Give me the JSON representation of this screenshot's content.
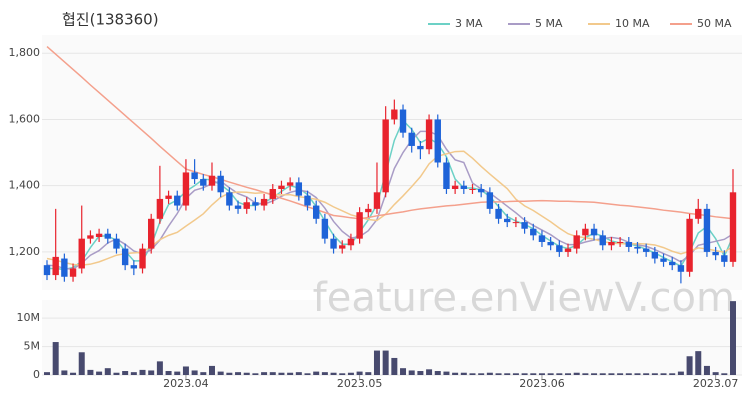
{
  "chart_data": {
    "type": "candlestick",
    "title": "협진(138360)",
    "watermark": "feature.enViewV.com",
    "categories": [
      null,
      null,
      null,
      null,
      null,
      null,
      null,
      null,
      null,
      null,
      null,
      null,
      null,
      null,
      null,
      null,
      "2023.04",
      null,
      null,
      null,
      null,
      null,
      null,
      null,
      null,
      null,
      null,
      null,
      null,
      null,
      null,
      null,
      null,
      null,
      null,
      null,
      "2023.05",
      null,
      null,
      null,
      null,
      null,
      null,
      null,
      null,
      null,
      null,
      null,
      null,
      null,
      null,
      null,
      null,
      null,
      null,
      null,
      null,
      "2023.06",
      null,
      null,
      null,
      null,
      null,
      null,
      null,
      null,
      null,
      null,
      null,
      null,
      null,
      null,
      null,
      null,
      null,
      null,
      null,
      "2023.07",
      null,
      null
    ],
    "open": [
      1160,
      1130,
      1180,
      1125,
      1150,
      1240,
      1245,
      1255,
      1240,
      1210,
      1160,
      1150,
      1210,
      1300,
      1360,
      1370,
      1340,
      1440,
      1420,
      1400,
      1430,
      1380,
      1340,
      1330,
      1350,
      1340,
      1360,
      1390,
      1400,
      1410,
      1370,
      1340,
      1300,
      1240,
      1210,
      1220,
      1240,
      1320,
      1330,
      1380,
      1600,
      1630,
      1560,
      1520,
      1510,
      1600,
      1470,
      1390,
      1400,
      1390,
      1390,
      1380,
      1330,
      1300,
      1290,
      1290,
      1270,
      1250,
      1230,
      1220,
      1200,
      1210,
      1250,
      1270,
      1250,
      1220,
      1230,
      1230,
      1215,
      1210,
      1200,
      1180,
      1170,
      1160,
      1140,
      1300,
      1330,
      1200,
      1190,
      1170
    ],
    "high": [
      1175,
      1330,
      1195,
      1165,
      1340,
      1265,
      1270,
      1270,
      1255,
      1225,
      1175,
      1225,
      1315,
      1460,
      1385,
      1385,
      1480,
      1480,
      1435,
      1470,
      1445,
      1395,
      1355,
      1365,
      1365,
      1375,
      1405,
      1415,
      1425,
      1425,
      1385,
      1355,
      1315,
      1255,
      1235,
      1255,
      1335,
      1345,
      1470,
      1640,
      1660,
      1645,
      1575,
      1535,
      1615,
      1615,
      1485,
      1415,
      1415,
      1405,
      1405,
      1395,
      1345,
      1315,
      1305,
      1305,
      1285,
      1265,
      1245,
      1235,
      1225,
      1265,
      1285,
      1285,
      1265,
      1245,
      1245,
      1245,
      1230,
      1225,
      1215,
      1195,
      1185,
      1175,
      1315,
      1360,
      1345,
      1215,
      1205,
      1450
    ],
    "low": [
      1115,
      1115,
      1110,
      1110,
      1135,
      1225,
      1230,
      1225,
      1195,
      1145,
      1130,
      1135,
      1195,
      1285,
      1345,
      1325,
      1325,
      1405,
      1385,
      1385,
      1365,
      1325,
      1315,
      1315,
      1325,
      1325,
      1345,
      1375,
      1385,
      1355,
      1325,
      1285,
      1225,
      1195,
      1195,
      1205,
      1225,
      1305,
      1315,
      1365,
      1585,
      1545,
      1500,
      1480,
      1495,
      1455,
      1375,
      1375,
      1375,
      1375,
      1365,
      1315,
      1285,
      1275,
      1275,
      1255,
      1235,
      1215,
      1205,
      1185,
      1185,
      1195,
      1235,
      1235,
      1205,
      1205,
      1215,
      1200,
      1195,
      1185,
      1165,
      1155,
      1145,
      1105,
      1125,
      1285,
      1185,
      1175,
      1155,
      1155
    ],
    "close": [
      1130,
      1185,
      1125,
      1150,
      1240,
      1250,
      1255,
      1240,
      1210,
      1160,
      1150,
      1210,
      1300,
      1360,
      1370,
      1340,
      1440,
      1420,
      1400,
      1430,
      1380,
      1340,
      1330,
      1350,
      1340,
      1360,
      1390,
      1400,
      1410,
      1370,
      1340,
      1300,
      1240,
      1210,
      1220,
      1240,
      1320,
      1330,
      1380,
      1600,
      1630,
      1560,
      1520,
      1510,
      1600,
      1470,
      1390,
      1400,
      1390,
      1390,
      1380,
      1330,
      1300,
      1290,
      1290,
      1270,
      1250,
      1230,
      1220,
      1200,
      1210,
      1250,
      1270,
      1250,
      1220,
      1230,
      1230,
      1215,
      1210,
      1200,
      1180,
      1170,
      1160,
      1140,
      1300,
      1330,
      1200,
      1190,
      1170,
      1380
    ],
    "volume": [
      500000,
      5800000,
      800000,
      400000,
      4000000,
      900000,
      600000,
      1200000,
      400000,
      700000,
      500000,
      900000,
      800000,
      2400000,
      700000,
      600000,
      1500000,
      800000,
      500000,
      1600000,
      600000,
      400000,
      500000,
      400000,
      300000,
      500000,
      500000,
      400000,
      400000,
      500000,
      300000,
      600000,
      500000,
      400000,
      300000,
      400000,
      600000,
      500000,
      4300000,
      4300000,
      3000000,
      1200000,
      800000,
      700000,
      1000000,
      700000,
      600000,
      400000,
      400000,
      300000,
      300000,
      400000,
      300000,
      300000,
      300000,
      300000,
      300000,
      300000,
      300000,
      300000,
      300000,
      400000,
      300000,
      300000,
      300000,
      300000,
      300000,
      300000,
      300000,
      300000,
      300000,
      300000,
      300000,
      600000,
      3300000,
      4200000,
      1600000,
      500000,
      300000,
      13000000
    ],
    "up_color": "#e8232d",
    "down_color": "#1e63d8",
    "volume_color": "#484a6e",
    "series": [
      {
        "name": "3 MA",
        "color": "#6cd1c6",
        "values": [
          1150,
          1150,
          1147,
          1153,
          1172,
          1213,
          1248,
          1248,
          1235,
          1203,
          1173,
          1173,
          1220,
          1290,
          1343,
          1357,
          1383,
          1400,
          1420,
          1417,
          1403,
          1383,
          1350,
          1340,
          1340,
          1350,
          1363,
          1383,
          1400,
          1393,
          1373,
          1337,
          1293,
          1250,
          1223,
          1223,
          1260,
          1297,
          1343,
          1437,
          1537,
          1597,
          1570,
          1530,
          1543,
          1527,
          1487,
          1420,
          1393,
          1393,
          1387,
          1367,
          1337,
          1307,
          1293,
          1283,
          1270,
          1250,
          1233,
          1217,
          1210,
          1220,
          1243,
          1257,
          1247,
          1233,
          1227,
          1225,
          1218,
          1208,
          1197,
          1183,
          1170,
          1157,
          1200,
          1257,
          1277,
          1240,
          1187,
          1247
        ]
      },
      {
        "name": "5 MA",
        "color": "#a99cc6",
        "values": [
          1160,
          1158,
          1150,
          1148,
          1166,
          1190,
          1204,
          1227,
          1239,
          1223,
          1203,
          1194,
          1206,
          1236,
          1278,
          1316,
          1362,
          1386,
          1394,
          1406,
          1414,
          1394,
          1376,
          1366,
          1348,
          1344,
          1354,
          1368,
          1380,
          1386,
          1382,
          1364,
          1332,
          1292,
          1262,
          1242,
          1246,
          1264,
          1298,
          1374,
          1452,
          1500,
          1538,
          1564,
          1564,
          1552,
          1510,
          1478,
          1470,
          1408,
          1390,
          1378,
          1358,
          1338,
          1318,
          1296,
          1280,
          1266,
          1252,
          1234,
          1222,
          1222,
          1230,
          1236,
          1240,
          1244,
          1240,
          1229,
          1221,
          1217,
          1207,
          1195,
          1184,
          1170,
          1190,
          1220,
          1226,
          1232,
          1238,
          1254
        ]
      },
      {
        "name": "10 MA",
        "color": "#f2c98c",
        "values": [
          1180,
          1175,
          1168,
          1162,
          1160,
          1163,
          1170,
          1180,
          1190,
          1195,
          1197,
          1199,
          1216,
          1237,
          1250,
          1259,
          1278,
          1296,
          1315,
          1342,
          1365,
          1378,
          1381,
          1380,
          1377,
          1379,
          1374,
          1372,
          1373,
          1367,
          1363,
          1359,
          1350,
          1336,
          1324,
          1312,
          1305,
          1298,
          1295,
          1314,
          1343,
          1369,
          1397,
          1427,
          1466,
          1489,
          1496,
          1503,
          1504,
          1483,
          1458,
          1435,
          1413,
          1391,
          1359,
          1339,
          1325,
          1308,
          1291,
          1272,
          1255,
          1246,
          1243,
          1238,
          1231,
          1227,
          1225,
          1224,
          1225,
          1224,
          1221,
          1213,
          1202,
          1194,
          1202,
          1212,
          1209,
          1204,
          1199,
          1217
        ]
      },
      {
        "name": "50 MA",
        "color": "#f4a08c",
        "values": [
          1820,
          1797,
          1774,
          1751,
          1728,
          1704,
          1681,
          1658,
          1635,
          1612,
          1589,
          1566,
          1543,
          1519,
          1496,
          1473,
          1450,
          1442,
          1434,
          1427,
          1419,
          1411,
          1403,
          1395,
          1388,
          1380,
          1371,
          1362,
          1354,
          1345,
          1336,
          1328,
          1319,
          1310,
          1307,
          1303,
          1300,
          1304,
          1309,
          1313,
          1317,
          1321,
          1326,
          1330,
          1333,
          1336,
          1339,
          1341,
          1344,
          1347,
          1350,
          1351,
          1351,
          1352,
          1353,
          1353,
          1354,
          1355,
          1354,
          1353,
          1353,
          1352,
          1351,
          1350,
          1347,
          1344,
          1341,
          1339,
          1336,
          1333,
          1330,
          1326,
          1323,
          1320,
          1316,
          1313,
          1310,
          1306,
          1303,
          1300
        ]
      }
    ],
    "ylim": [
      1085,
      1855
    ],
    "yticks": [
      {
        "value": 1200,
        "label": "1,200"
      },
      {
        "value": 1400,
        "label": "1,400"
      },
      {
        "value": 1600,
        "label": "1,600"
      },
      {
        "value": 1800,
        "label": "1,800"
      }
    ],
    "volume_ylim": [
      0,
      13200000
    ],
    "volume_yticks": [
      0,
      {
        "value": 5000000,
        "label": "5M"
      },
      {
        "value": 10000000,
        "label": "10M"
      }
    ],
    "grid": true
  }
}
